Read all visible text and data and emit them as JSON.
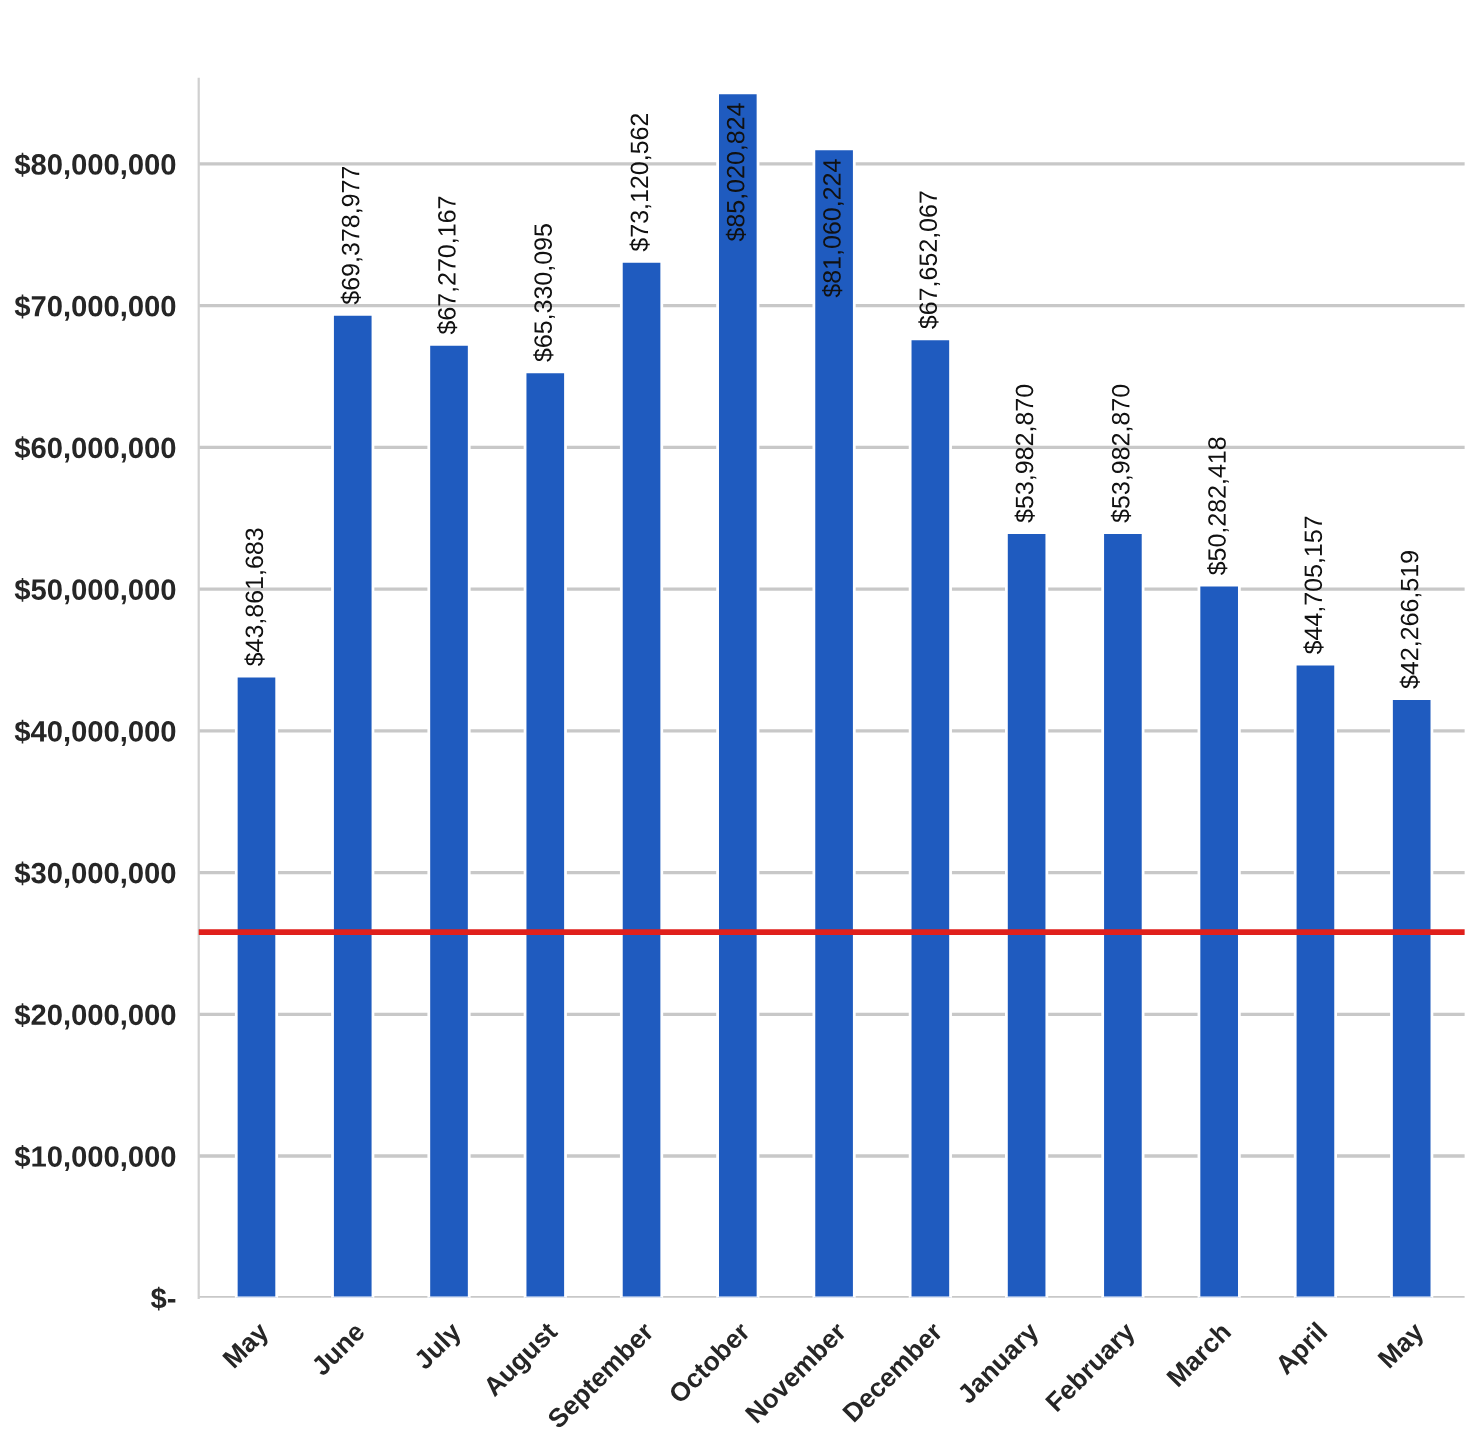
{
  "chart_data": {
    "type": "bar",
    "categories": [
      "May",
      "June",
      "July",
      "August",
      "September",
      "October",
      "November",
      "December",
      "January",
      "February",
      "March",
      "April",
      "May"
    ],
    "values": [
      43861683,
      69378977,
      67270167,
      65330095,
      73120562,
      85020824,
      81060224,
      67652067,
      53982870,
      53982870,
      50282418,
      44705157,
      42266519
    ],
    "value_labels": [
      "$43,861,683",
      "$69,378,977",
      "$67,270,167",
      "$65,330,095",
      "$73,120,562",
      "$85,020,824",
      "$81,060,224",
      "$67,652,067",
      "$53,982,870",
      "$53,982,870",
      "$50,282,418",
      "$44,705,157",
      "$42,266,519"
    ],
    "color": "#1f5bbf",
    "ylim": [
      0,
      86000000
    ],
    "yticks": [
      {
        "value": 0,
        "label": "$-"
      },
      {
        "value": 10000000,
        "label": "$10,000,000"
      },
      {
        "value": 20000000,
        "label": "$20,000,000"
      },
      {
        "value": 30000000,
        "label": "$30,000,000"
      },
      {
        "value": 40000000,
        "label": "$40,000,000"
      },
      {
        "value": 50000000,
        "label": "$50,000,000"
      },
      {
        "value": 60000000,
        "label": "$60,000,000"
      },
      {
        "value": 70000000,
        "label": "$70,000,000"
      },
      {
        "value": 80000000,
        "label": "$80,000,000"
      }
    ],
    "ref_lines": [
      {
        "axis": "y",
        "value": 25800000,
        "color": "#e0201c",
        "line_style": "solid"
      }
    ],
    "grid": "y"
  }
}
